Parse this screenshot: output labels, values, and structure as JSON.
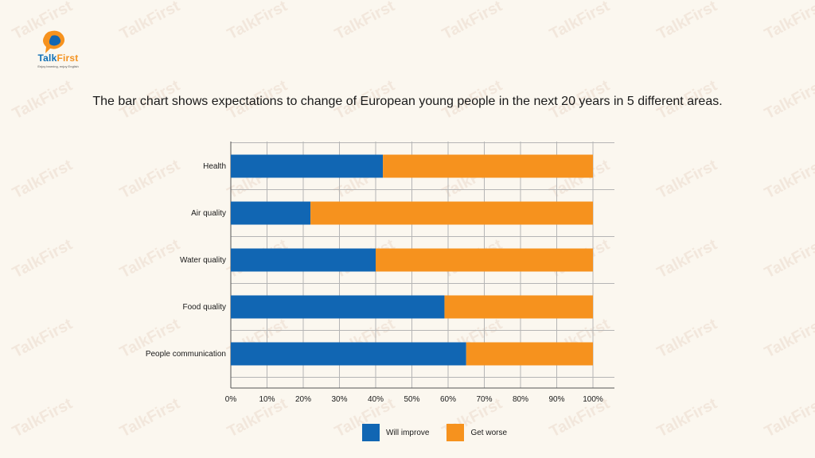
{
  "logo": {
    "brand_part1": "Talk",
    "brand_part2": "First",
    "tagline": "Enjoy learning, enjoy English"
  },
  "watermark_text": "TalkFirst",
  "title": "The bar chart shows expectations to change of European young people in the next 20 years in 5 different areas.",
  "colors": {
    "will_improve": "#1166b3",
    "get_worse": "#f6921e",
    "grid": "#b5b5b5",
    "background": "#fbf7ef"
  },
  "chart_data": {
    "type": "bar",
    "orientation": "horizontal",
    "stacked": true,
    "categories": [
      "Health",
      "Air quality",
      "Water quality",
      "Food quality",
      "People communication"
    ],
    "series": [
      {
        "name": "Will improve",
        "values": [
          42,
          22,
          40,
          59,
          65
        ]
      },
      {
        "name": "Get worse",
        "values": [
          58,
          78,
          60,
          41,
          35
        ]
      }
    ],
    "xlim": [
      0,
      100
    ],
    "x_ticks": [
      "0%",
      "10%",
      "20%",
      "30%",
      "40%",
      "50%",
      "60%",
      "70%",
      "80%",
      "90%",
      "100%"
    ],
    "grid": true,
    "legend_position": "bottom"
  }
}
